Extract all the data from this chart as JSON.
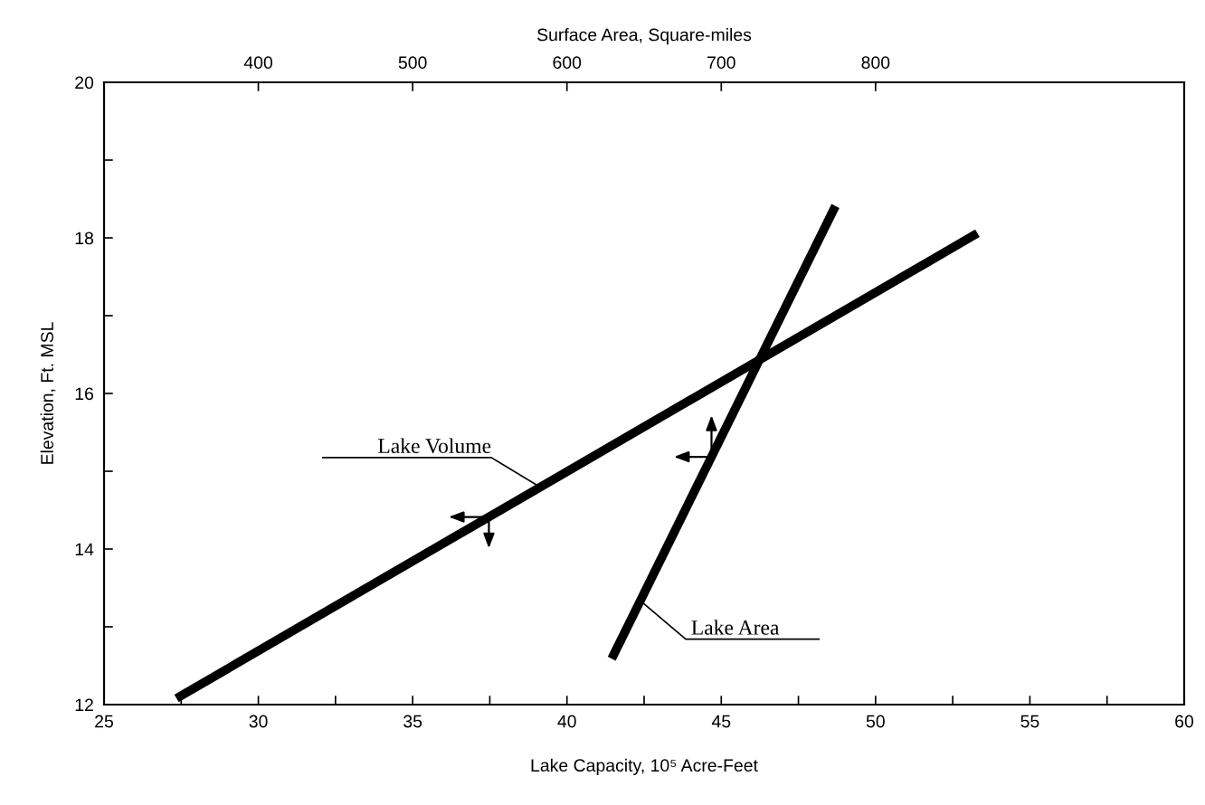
{
  "chart_data": {
    "type": "line",
    "xlabel": "Lake Capacity, 10⁵ Acre-Feet",
    "ylabel": "Elevation, Ft. MSL",
    "x2label": "Surface Area, Square-miles",
    "xlim": [
      25,
      60
    ],
    "xticks": [
      25,
      {
        "value": 27.5,
        "label": null
      },
      30,
      {
        "value": 32.5,
        "label": null
      },
      35,
      {
        "value": 37.5,
        "label": null
      },
      40,
      {
        "value": 42.5,
        "label": null
      },
      45,
      {
        "value": 47.5,
        "label": null
      },
      50,
      {
        "value": 52.5,
        "label": null
      },
      55,
      {
        "value": 57.5,
        "label": null
      },
      60
    ],
    "x2lim": [
      300,
      1000
    ],
    "x2ticks": [
      400,
      500,
      600,
      700,
      800
    ],
    "ylim": [
      12,
      20
    ],
    "yticks": [
      12,
      {
        "value": 13,
        "label": null
      },
      14,
      {
        "value": 15,
        "label": null
      },
      16,
      {
        "value": 17,
        "label": null
      },
      18,
      {
        "value": 19,
        "label": null
      },
      20
    ],
    "grid": false,
    "legend": false,
    "marker": "none",
    "line_style": "solid",
    "series": [
      {
        "name": "Lake Volume",
        "color": "#000000",
        "x": [
          27.35,
          53.3
        ],
        "values": [
          12.08,
          18.06
        ]
      },
      {
        "name": "Lake Area",
        "color": "#000000",
        "axis": "x2",
        "x": [
          629,
          774
        ],
        "values": [
          12.59,
          18.41
        ]
      }
    ]
  }
}
